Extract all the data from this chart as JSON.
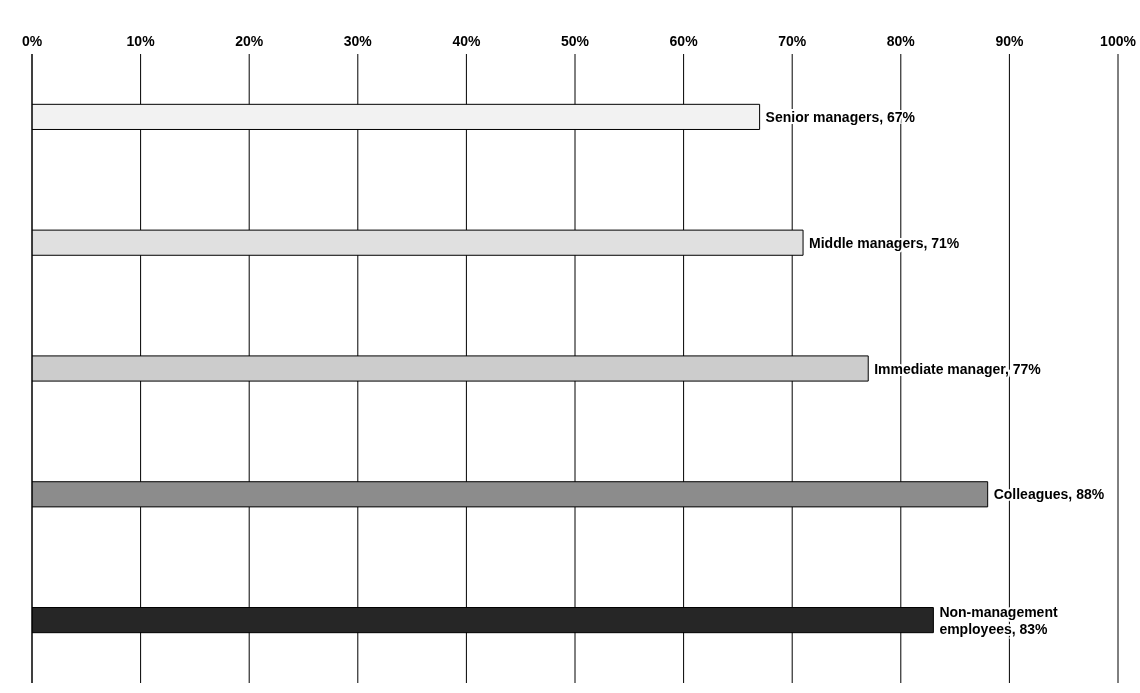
{
  "chart_data": {
    "type": "bar",
    "orientation": "horizontal",
    "categories": [
      null,
      null,
      null,
      null,
      null
    ],
    "values": [
      67,
      71,
      77,
      88,
      83
    ],
    "colors": [
      "#f2f2f2",
      "#e0e0e0",
      "#cccccc",
      "#8c8c8c",
      "#262626"
    ],
    "value_labels": [
      "Senior managers, 67%",
      "Middle managers, 71%",
      "Immediate manager, 77%",
      "Colleagues, 88%",
      "Non-management\nemployees, 83%"
    ],
    "xlim": [
      0,
      100
    ],
    "xticks": [
      {
        "value": 0,
        "label": "0%"
      },
      {
        "value": 10,
        "label": "10%"
      },
      {
        "value": 20,
        "label": "20%"
      },
      {
        "value": 30,
        "label": "30%"
      },
      {
        "value": 40,
        "label": "40%"
      },
      {
        "value": 50,
        "label": "50%"
      },
      {
        "value": 60,
        "label": "60%"
      },
      {
        "value": 70,
        "label": "70%"
      },
      {
        "value": 80,
        "label": "80%"
      },
      {
        "value": 90,
        "label": "90%"
      },
      {
        "value": 100,
        "label": "100%"
      }
    ],
    "grid": "x"
  }
}
